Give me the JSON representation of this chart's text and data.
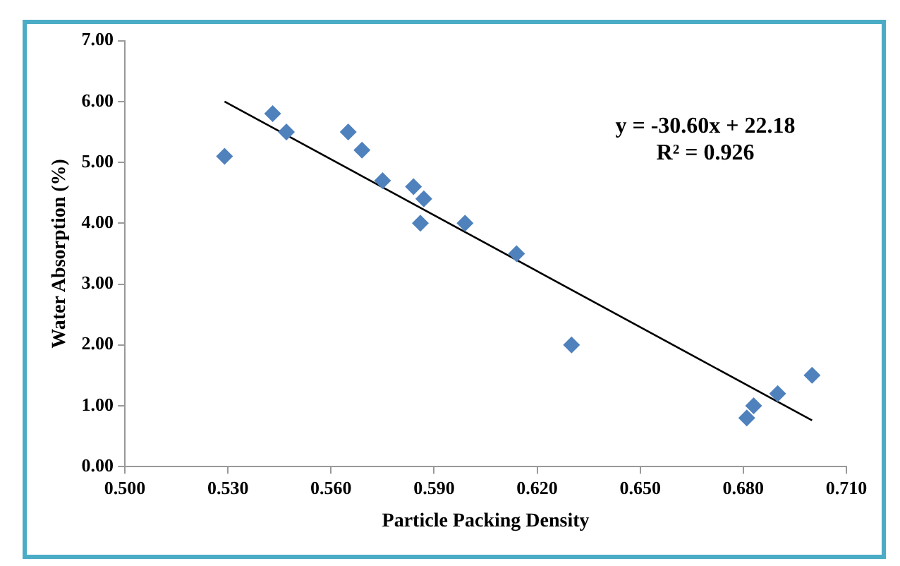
{
  "chart_data": {
    "type": "scatter",
    "xlabel": "Particle Packing Density",
    "ylabel": "Water Absorption (%)",
    "xlim": [
      0.5,
      0.71
    ],
    "xticks": [
      {
        "value": 0.5,
        "label": "0.500"
      },
      {
        "value": 0.53,
        "label": "0.530"
      },
      {
        "value": 0.56,
        "label": "0.560"
      },
      {
        "value": 0.59,
        "label": "0.590"
      },
      {
        "value": 0.62,
        "label": "0.620"
      },
      {
        "value": 0.65,
        "label": "0.650"
      },
      {
        "value": 0.68,
        "label": "0.680"
      },
      {
        "value": 0.71,
        "label": "0.710"
      }
    ],
    "ylim": [
      0,
      7
    ],
    "yticks": [
      {
        "value": 0,
        "label": "0.00"
      },
      {
        "value": 1,
        "label": "1.00"
      },
      {
        "value": 2,
        "label": "2.00"
      },
      {
        "value": 3,
        "label": "3.00"
      },
      {
        "value": 4,
        "label": "4.00"
      },
      {
        "value": 5,
        "label": "5.00"
      },
      {
        "value": 6,
        "label": "6.00"
      },
      {
        "value": 7,
        "label": "7.00"
      }
    ],
    "grid": false,
    "legend": false,
    "marker": "diamond",
    "series": [
      {
        "type": "scatter",
        "color": "#4f81bd",
        "x": [
          0.529,
          0.543,
          0.547,
          0.565,
          0.569,
          0.575,
          0.584,
          0.587,
          0.586,
          0.599,
          0.614,
          0.63,
          0.681,
          0.683,
          0.69,
          0.7
        ],
        "values": [
          5.1,
          5.8,
          5.5,
          5.5,
          5.2,
          4.7,
          4.6,
          4.4,
          4.0,
          4.0,
          3.5,
          2.0,
          0.8,
          1.0,
          1.2,
          1.5
        ]
      },
      {
        "type": "line",
        "marker": "none",
        "color": "#000000",
        "x": [
          0.529,
          0.7
        ],
        "values": [
          6.0,
          0.76
        ]
      }
    ],
    "annotations": [
      "y = -30.60x + 22.18",
      "R² = 0.926"
    ]
  }
}
